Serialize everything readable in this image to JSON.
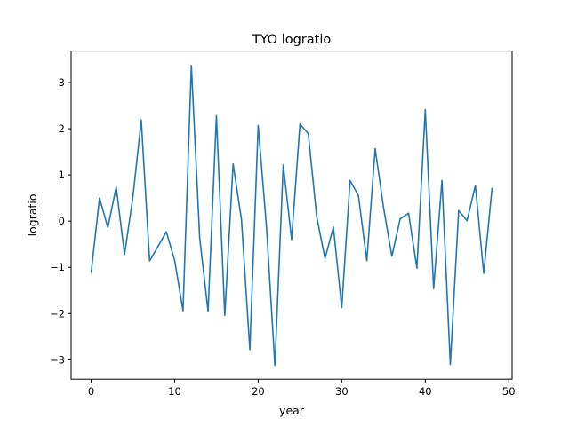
{
  "chart_data": {
    "type": "line",
    "title": "TYO logratio",
    "xlabel": "year",
    "ylabel": "logratio",
    "xlim": [
      -2.4,
      50.4
    ],
    "ylim": [
      -3.42,
      3.68
    ],
    "xticks": [
      0,
      10,
      20,
      30,
      40,
      50
    ],
    "yticks": [
      -3,
      -2,
      -1,
      0,
      1,
      2,
      3
    ],
    "grid": false,
    "color": "#1f77b4",
    "x": [
      0,
      1,
      2,
      3,
      4,
      5,
      6,
      7,
      8,
      9,
      10,
      11,
      12,
      13,
      14,
      15,
      16,
      17,
      18,
      19,
      20,
      21,
      22,
      23,
      24,
      25,
      26,
      27,
      28,
      29,
      30,
      31,
      32,
      33,
      34,
      35,
      36,
      37,
      38,
      39,
      40,
      41,
      42,
      43,
      44,
      45,
      46,
      47,
      48
    ],
    "series": [
      {
        "values": [
          -1.12,
          0.5,
          -0.14,
          0.74,
          -0.72,
          0.52,
          2.19,
          -0.86,
          -0.55,
          -0.23,
          -0.85,
          -1.94,
          3.37,
          -0.37,
          -1.95,
          2.28,
          -2.04,
          1.24,
          0.03,
          -2.78,
          2.07,
          -0.14,
          -3.12,
          1.22,
          -0.4,
          2.1,
          1.89,
          0.1,
          -0.81,
          -0.13,
          -1.87,
          0.88,
          0.55,
          -0.86,
          1.57,
          0.3,
          -0.76,
          0.05,
          0.17,
          -1.02,
          2.41,
          -1.46,
          0.88,
          -3.1,
          0.23,
          0.01,
          0.77,
          -1.13,
          0.72
        ]
      }
    ]
  }
}
